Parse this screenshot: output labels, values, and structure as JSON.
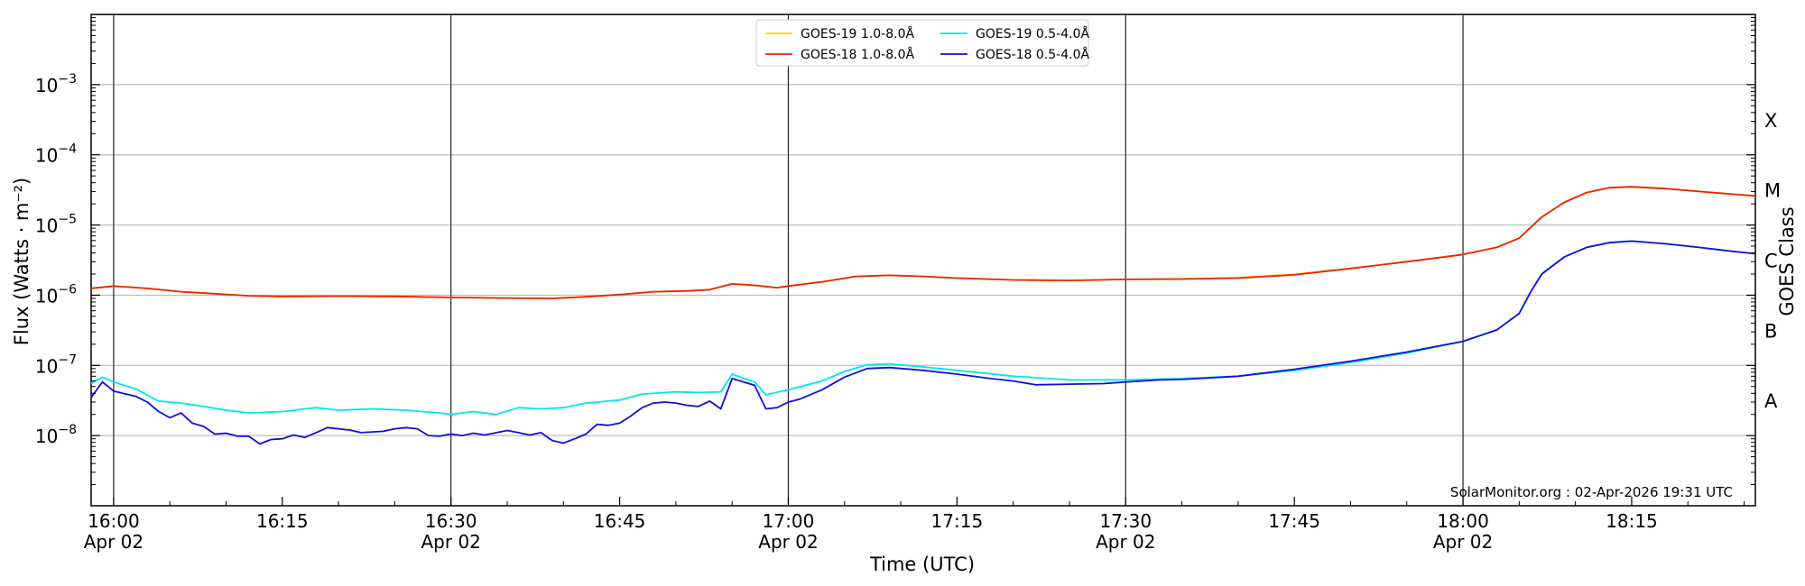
{
  "chart_data": {
    "type": "line",
    "xlabel": "Time (UTC)",
    "ylabel": "Flux (Watts · m⁻²)",
    "right_label": "GOES Class",
    "credit": "SolarMonitor.org : 02-Apr-2026 19:31 UTC",
    "x_range": [
      "15:58",
      "18:26"
    ],
    "y_scale": "log",
    "ylim": [
      1e-09,
      0.01
    ],
    "grid": "horizontal",
    "legend_position": "top-center",
    "x_ticks": [
      {
        "time": "16:00",
        "label": "16:00",
        "sublabel": "Apr 02",
        "major": true
      },
      {
        "time": "16:15",
        "label": "16:15",
        "sublabel": "",
        "major": false
      },
      {
        "time": "16:30",
        "label": "16:30",
        "sublabel": "Apr 02",
        "major": true
      },
      {
        "time": "16:45",
        "label": "16:45",
        "sublabel": "",
        "major": false
      },
      {
        "time": "17:00",
        "label": "17:00",
        "sublabel": "Apr 02",
        "major": true
      },
      {
        "time": "17:15",
        "label": "17:15",
        "sublabel": "",
        "major": false
      },
      {
        "time": "17:30",
        "label": "17:30",
        "sublabel": "Apr 02",
        "major": true
      },
      {
        "time": "17:45",
        "label": "17:45",
        "sublabel": "",
        "major": false
      },
      {
        "time": "18:00",
        "label": "18:00",
        "sublabel": "Apr 02",
        "major": true
      },
      {
        "time": "18:15",
        "label": "18:15",
        "sublabel": "",
        "major": false
      }
    ],
    "y_ticks": [
      {
        "value": 1e-08,
        "base": "10",
        "exp": "−8"
      },
      {
        "value": 1e-07,
        "base": "10",
        "exp": "−7"
      },
      {
        "value": 1e-06,
        "base": "10",
        "exp": "−6"
      },
      {
        "value": 1e-05,
        "base": "10",
        "exp": "−5"
      },
      {
        "value": 0.0001,
        "base": "10",
        "exp": "−4"
      },
      {
        "value": 0.001,
        "base": "10",
        "exp": "−3"
      }
    ],
    "goes_classes": [
      {
        "label": "A",
        "value": 3.16e-08
      },
      {
        "label": "B",
        "value": 3.16e-07
      },
      {
        "label": "C",
        "value": 3.16e-06
      },
      {
        "label": "M",
        "value": 3.16e-05
      },
      {
        "label": "X",
        "value": 0.000316
      }
    ],
    "series": [
      {
        "name": "GOES-19 1.0-8.0Å",
        "color": "#ffd700",
        "points": [
          [
            "15:58",
            1.25e-06
          ],
          [
            "16:00",
            1.35e-06
          ],
          [
            "16:03",
            1.25e-06
          ],
          [
            "16:06",
            1.12e-06
          ],
          [
            "16:09",
            1.05e-06
          ],
          [
            "16:12",
            9.8e-07
          ],
          [
            "16:15",
            9.6e-07
          ],
          [
            "16:20",
            9.7e-07
          ],
          [
            "16:25",
            9.6e-07
          ],
          [
            "16:30",
            9.3e-07
          ],
          [
            "16:35",
            9.1e-07
          ],
          [
            "16:39",
            9e-07
          ],
          [
            "16:42",
            9.5e-07
          ],
          [
            "16:45",
            1.02e-06
          ],
          [
            "16:48",
            1.12e-06
          ],
          [
            "16:51",
            1.15e-06
          ],
          [
            "16:53",
            1.2e-06
          ],
          [
            "16:55",
            1.45e-06
          ],
          [
            "16:57",
            1.38e-06
          ],
          [
            "16:59",
            1.28e-06
          ],
          [
            "17:00",
            1.35e-06
          ],
          [
            "17:03",
            1.55e-06
          ],
          [
            "17:06",
            1.85e-06
          ],
          [
            "17:09",
            1.92e-06
          ],
          [
            "17:12",
            1.85e-06
          ],
          [
            "17:15",
            1.75e-06
          ],
          [
            "17:20",
            1.65e-06
          ],
          [
            "17:25",
            1.62e-06
          ],
          [
            "17:30",
            1.68e-06
          ],
          [
            "17:35",
            1.7e-06
          ],
          [
            "17:40",
            1.78e-06
          ],
          [
            "17:45",
            1.98e-06
          ],
          [
            "17:50",
            2.4e-06
          ],
          [
            "17:55",
            3e-06
          ],
          [
            "18:00",
            3.8e-06
          ],
          [
            "18:03",
            4.8e-06
          ],
          [
            "18:05",
            6.5e-06
          ],
          [
            "18:07",
            1.3e-05
          ],
          [
            "18:09",
            2.1e-05
          ],
          [
            "18:11",
            2.9e-05
          ],
          [
            "18:13",
            3.4e-05
          ],
          [
            "18:15",
            3.5e-05
          ],
          [
            "18:18",
            3.3e-05
          ],
          [
            "18:21",
            3e-05
          ],
          [
            "18:24",
            2.75e-05
          ],
          [
            "18:26",
            2.6e-05
          ]
        ]
      },
      {
        "name": "GOES-18 1.0-8.0Å",
        "color": "#ee2200",
        "points": [
          [
            "15:58",
            1.25e-06
          ],
          [
            "16:00",
            1.35e-06
          ],
          [
            "16:03",
            1.25e-06
          ],
          [
            "16:06",
            1.12e-06
          ],
          [
            "16:09",
            1.05e-06
          ],
          [
            "16:12",
            9.8e-07
          ],
          [
            "16:15",
            9.6e-07
          ],
          [
            "16:20",
            9.7e-07
          ],
          [
            "16:25",
            9.6e-07
          ],
          [
            "16:30",
            9.3e-07
          ],
          [
            "16:35",
            9.1e-07
          ],
          [
            "16:39",
            9e-07
          ],
          [
            "16:42",
            9.5e-07
          ],
          [
            "16:45",
            1.02e-06
          ],
          [
            "16:48",
            1.12e-06
          ],
          [
            "16:51",
            1.15e-06
          ],
          [
            "16:53",
            1.2e-06
          ],
          [
            "16:55",
            1.45e-06
          ],
          [
            "16:57",
            1.38e-06
          ],
          [
            "16:59",
            1.28e-06
          ],
          [
            "17:00",
            1.35e-06
          ],
          [
            "17:03",
            1.55e-06
          ],
          [
            "17:06",
            1.85e-06
          ],
          [
            "17:09",
            1.92e-06
          ],
          [
            "17:12",
            1.85e-06
          ],
          [
            "17:15",
            1.75e-06
          ],
          [
            "17:20",
            1.65e-06
          ],
          [
            "17:25",
            1.62e-06
          ],
          [
            "17:30",
            1.68e-06
          ],
          [
            "17:35",
            1.7e-06
          ],
          [
            "17:40",
            1.75e-06
          ],
          [
            "17:45",
            1.95e-06
          ],
          [
            "17:50",
            2.4e-06
          ],
          [
            "17:55",
            3e-06
          ],
          [
            "18:00",
            3.8e-06
          ],
          [
            "18:03",
            4.8e-06
          ],
          [
            "18:05",
            6.5e-06
          ],
          [
            "18:07",
            1.3e-05
          ],
          [
            "18:09",
            2.1e-05
          ],
          [
            "18:11",
            2.9e-05
          ],
          [
            "18:13",
            3.4e-05
          ],
          [
            "18:15",
            3.5e-05
          ],
          [
            "18:18",
            3.3e-05
          ],
          [
            "18:21",
            3e-05
          ],
          [
            "18:24",
            2.75e-05
          ],
          [
            "18:26",
            2.6e-05
          ]
        ]
      },
      {
        "name": "GOES-19 0.5-4.0Å",
        "color": "#00e5ee",
        "points": [
          [
            "15:58",
            5.5e-08
          ],
          [
            "15:59",
            6.8e-08
          ],
          [
            "16:00",
            5.8e-08
          ],
          [
            "16:02",
            4.6e-08
          ],
          [
            "16:04",
            3.1e-08
          ],
          [
            "16:06",
            2.9e-08
          ],
          [
            "16:08",
            2.6e-08
          ],
          [
            "16:10",
            2.3e-08
          ],
          [
            "16:12",
            2.1e-08
          ],
          [
            "16:15",
            2.2e-08
          ],
          [
            "16:18",
            2.5e-08
          ],
          [
            "16:20",
            2.3e-08
          ],
          [
            "16:23",
            2.4e-08
          ],
          [
            "16:26",
            2.3e-08
          ],
          [
            "16:29",
            2.1e-08
          ],
          [
            "16:30",
            2e-08
          ],
          [
            "16:32",
            2.2e-08
          ],
          [
            "16:34",
            2e-08
          ],
          [
            "16:36",
            2.5e-08
          ],
          [
            "16:38",
            2.4e-08
          ],
          [
            "16:40",
            2.5e-08
          ],
          [
            "16:42",
            2.9e-08
          ],
          [
            "16:45",
            3.2e-08
          ],
          [
            "16:47",
            3.9e-08
          ],
          [
            "16:50",
            4.2e-08
          ],
          [
            "16:52",
            4.1e-08
          ],
          [
            "16:54",
            4.2e-08
          ],
          [
            "16:55",
            7.5e-08
          ],
          [
            "16:57",
            5.8e-08
          ],
          [
            "16:58",
            3.8e-08
          ],
          [
            "17:00",
            4.5e-08
          ],
          [
            "17:03",
            6e-08
          ],
          [
            "17:05",
            8.2e-08
          ],
          [
            "17:07",
            1.02e-07
          ],
          [
            "17:09",
            1.05e-07
          ],
          [
            "17:12",
            9.5e-08
          ],
          [
            "17:15",
            8.5e-08
          ],
          [
            "17:20",
            7e-08
          ],
          [
            "17:25",
            6.2e-08
          ],
          [
            "17:30",
            6.2e-08
          ],
          [
            "17:35",
            6.5e-08
          ],
          [
            "17:40",
            7e-08
          ],
          [
            "17:45",
            8.5e-08
          ],
          [
            "17:50",
            1.1e-07
          ],
          [
            "17:55",
            1.5e-07
          ],
          [
            "18:00",
            2.2e-07
          ],
          [
            "18:03",
            3.2e-07
          ],
          [
            "18:04",
            4.2e-07
          ],
          [
            "18:05",
            5.5e-07
          ],
          [
            "18:06",
            1.1e-06
          ],
          [
            "18:07",
            2e-06
          ],
          [
            "18:09",
            3.5e-06
          ],
          [
            "18:11",
            4.8e-06
          ],
          [
            "18:13",
            5.6e-06
          ],
          [
            "18:15",
            5.9e-06
          ],
          [
            "18:18",
            5.4e-06
          ],
          [
            "18:21",
            4.8e-06
          ],
          [
            "18:24",
            4.2e-06
          ],
          [
            "18:26",
            3.9e-06
          ]
        ]
      },
      {
        "name": "GOES-18 0.5-4.0Å",
        "color": "#1010dd",
        "points": [
          [
            "15:58",
            3.5e-08
          ],
          [
            "15:59",
            5.8e-08
          ],
          [
            "16:00",
            4.3e-08
          ],
          [
            "16:02",
            3.6e-08
          ],
          [
            "16:03",
            3e-08
          ],
          [
            "16:04",
            2.2e-08
          ],
          [
            "16:05",
            1.8e-08
          ],
          [
            "16:06",
            2.1e-08
          ],
          [
            "16:07",
            1.5e-08
          ],
          [
            "16:08",
            1.35e-08
          ],
          [
            "16:09",
            1.05e-08
          ],
          [
            "16:10",
            1.08e-08
          ],
          [
            "16:11",
            9.8e-09
          ],
          [
            "16:12",
            9.8e-09
          ],
          [
            "16:13",
            7.6e-09
          ],
          [
            "16:14",
            8.8e-09
          ],
          [
            "16:15",
            9e-09
          ],
          [
            "16:16",
            1.02e-08
          ],
          [
            "16:17",
            9.4e-09
          ],
          [
            "16:18",
            1.1e-08
          ],
          [
            "16:19",
            1.3e-08
          ],
          [
            "16:21",
            1.2e-08
          ],
          [
            "16:22",
            1.1e-08
          ],
          [
            "16:24",
            1.15e-08
          ],
          [
            "16:25",
            1.25e-08
          ],
          [
            "16:26",
            1.3e-08
          ],
          [
            "16:27",
            1.25e-08
          ],
          [
            "16:28",
            1e-08
          ],
          [
            "16:29",
            9.8e-09
          ],
          [
            "16:30",
            1.05e-08
          ],
          [
            "16:31",
            1e-08
          ],
          [
            "16:32",
            1.08e-08
          ],
          [
            "16:33",
            1.02e-08
          ],
          [
            "16:35",
            1.18e-08
          ],
          [
            "16:36",
            1.1e-08
          ],
          [
            "16:37",
            1.02e-08
          ],
          [
            "16:38",
            1.1e-08
          ],
          [
            "16:39",
            8.5e-09
          ],
          [
            "16:40",
            7.8e-09
          ],
          [
            "16:41",
            9e-09
          ],
          [
            "16:42",
            1.05e-08
          ],
          [
            "16:43",
            1.45e-08
          ],
          [
            "16:44",
            1.4e-08
          ],
          [
            "16:45",
            1.5e-08
          ],
          [
            "16:46",
            1.9e-08
          ],
          [
            "16:47",
            2.5e-08
          ],
          [
            "16:48",
            2.9e-08
          ],
          [
            "16:49",
            3e-08
          ],
          [
            "16:50",
            2.9e-08
          ],
          [
            "16:51",
            2.7e-08
          ],
          [
            "16:52",
            2.6e-08
          ],
          [
            "16:53",
            3.1e-08
          ],
          [
            "16:54",
            2.4e-08
          ],
          [
            "16:55",
            6.5e-08
          ],
          [
            "16:57",
            5.2e-08
          ],
          [
            "16:58",
            2.4e-08
          ],
          [
            "16:59",
            2.5e-08
          ],
          [
            "17:00",
            3e-08
          ],
          [
            "17:01",
            3.3e-08
          ],
          [
            "17:03",
            4.5e-08
          ],
          [
            "17:05",
            6.8e-08
          ],
          [
            "17:07",
            9e-08
          ],
          [
            "17:09",
            9.3e-08
          ],
          [
            "17:12",
            8.5e-08
          ],
          [
            "17:15",
            7.5e-08
          ],
          [
            "17:18",
            6.5e-08
          ],
          [
            "17:20",
            6e-08
          ],
          [
            "17:22",
            5.3e-08
          ],
          [
            "17:25",
            5.4e-08
          ],
          [
            "17:28",
            5.5e-08
          ],
          [
            "17:30",
            5.8e-08
          ],
          [
            "17:33",
            6.2e-08
          ],
          [
            "17:35",
            6.3e-08
          ],
          [
            "17:40",
            7e-08
          ],
          [
            "17:45",
            8.8e-08
          ],
          [
            "17:50",
            1.15e-07
          ],
          [
            "17:55",
            1.55e-07
          ],
          [
            "18:00",
            2.2e-07
          ],
          [
            "18:03",
            3.2e-07
          ],
          [
            "18:04",
            4.2e-07
          ],
          [
            "18:05",
            5.5e-07
          ],
          [
            "18:06",
            1.1e-06
          ],
          [
            "18:07",
            2e-06
          ],
          [
            "18:09",
            3.5e-06
          ],
          [
            "18:11",
            4.8e-06
          ],
          [
            "18:13",
            5.6e-06
          ],
          [
            "18:15",
            5.9e-06
          ],
          [
            "18:18",
            5.4e-06
          ],
          [
            "18:21",
            4.8e-06
          ],
          [
            "18:24",
            4.2e-06
          ],
          [
            "18:26",
            3.9e-06
          ]
        ]
      }
    ],
    "legend": [
      {
        "label": "GOES-19 1.0-8.0Å",
        "color": "#ffd700"
      },
      {
        "label": "GOES-19 0.5-4.0Å",
        "color": "#00e5ee"
      },
      {
        "label": "GOES-18 1.0-8.0Å",
        "color": "#ee2200"
      },
      {
        "label": "GOES-18 0.5-4.0Å",
        "color": "#1010dd"
      }
    ]
  }
}
